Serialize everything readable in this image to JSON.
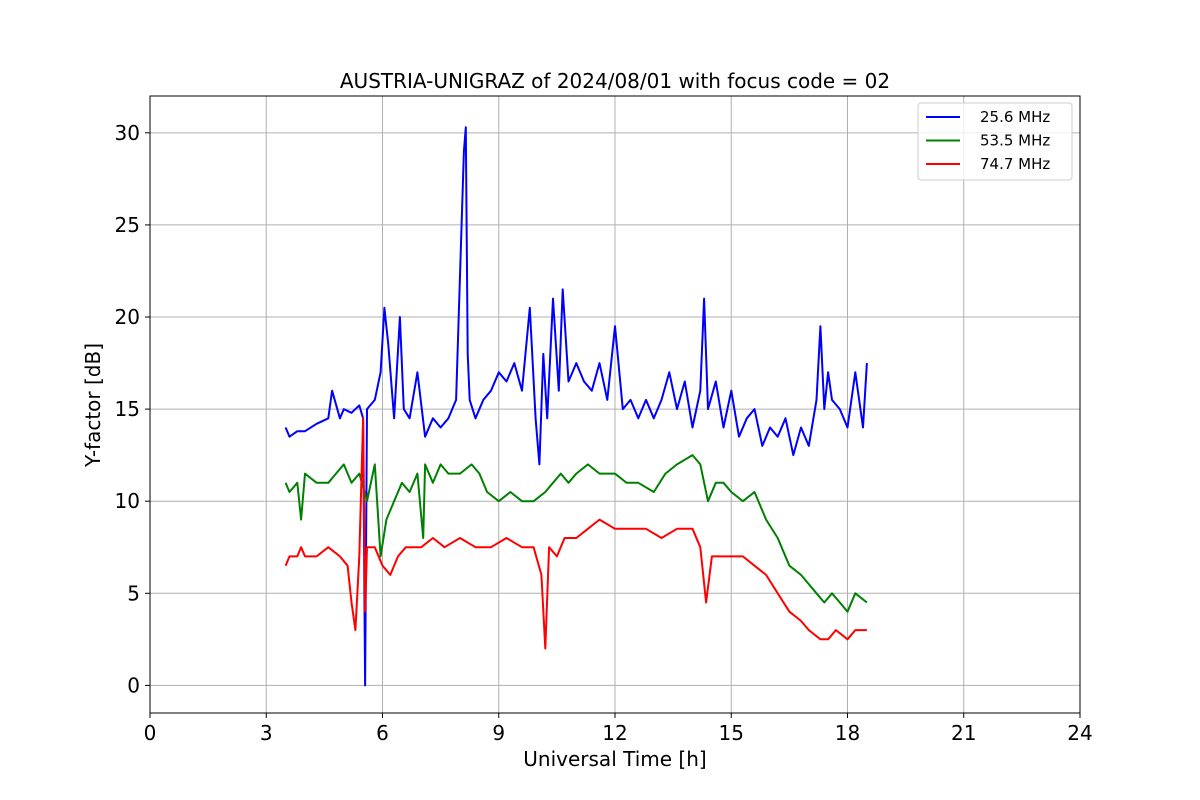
{
  "chart_data": {
    "type": "line",
    "title": "AUSTRIA-UNIGRAZ of 2024/08/01 with focus code = 02",
    "xlabel": "Universal Time [h]",
    "ylabel": "Y-factor [dB]",
    "xlim": [
      0,
      24
    ],
    "ylim": [
      -1.5,
      32
    ],
    "xticks": [
      0,
      3,
      6,
      9,
      12,
      15,
      18,
      21,
      24
    ],
    "yticks": [
      0,
      5,
      10,
      15,
      20,
      25,
      30
    ],
    "grid": true,
    "legend": "top-right",
    "series": [
      {
        "name": "25.6 MHz",
        "color": "#0000ff",
        "x": [
          3.5,
          3.6,
          3.8,
          4.0,
          4.3,
          4.6,
          4.7,
          4.9,
          5.0,
          5.2,
          5.4,
          5.5,
          5.55,
          5.6,
          5.8,
          5.95,
          6.05,
          6.15,
          6.3,
          6.45,
          6.55,
          6.7,
          6.9,
          7.1,
          7.3,
          7.5,
          7.7,
          7.9,
          8.1,
          8.15,
          8.2,
          8.25,
          8.4,
          8.6,
          8.8,
          9.0,
          9.2,
          9.4,
          9.6,
          9.8,
          9.95,
          10.05,
          10.15,
          10.25,
          10.4,
          10.55,
          10.65,
          10.8,
          11.0,
          11.2,
          11.4,
          11.6,
          11.8,
          12.0,
          12.2,
          12.4,
          12.6,
          12.8,
          13.0,
          13.2,
          13.4,
          13.6,
          13.8,
          14.0,
          14.2,
          14.3,
          14.4,
          14.6,
          14.8,
          15.0,
          15.2,
          15.4,
          15.6,
          15.8,
          16.0,
          16.2,
          16.4,
          16.6,
          16.8,
          17.0,
          17.2,
          17.3,
          17.4,
          17.5,
          17.6,
          17.8,
          18.0,
          18.2,
          18.4,
          18.5
        ],
        "values": [
          14.0,
          13.5,
          13.8,
          13.8,
          14.2,
          14.5,
          16.0,
          14.5,
          15.0,
          14.8,
          15.2,
          14.5,
          0.0,
          15.0,
          15.5,
          17.0,
          20.5,
          18.5,
          14.5,
          20.0,
          15.0,
          14.5,
          17.0,
          13.5,
          14.5,
          14.0,
          14.5,
          15.5,
          29.0,
          30.3,
          18.0,
          15.5,
          14.5,
          15.5,
          16.0,
          17.0,
          16.5,
          17.5,
          16.0,
          20.5,
          14.5,
          12.0,
          18.0,
          14.5,
          21.0,
          16.0,
          21.5,
          16.5,
          17.5,
          16.5,
          16.0,
          17.5,
          15.5,
          19.5,
          15.0,
          15.5,
          14.5,
          15.5,
          14.5,
          15.5,
          17.0,
          15.0,
          16.5,
          14.0,
          16.0,
          21.0,
          15.0,
          16.5,
          14.0,
          16.0,
          13.5,
          14.5,
          15.0,
          13.0,
          14.0,
          13.5,
          14.5,
          12.5,
          14.0,
          13.0,
          15.5,
          19.5,
          15.0,
          17.0,
          15.5,
          15.0,
          14.0,
          17.0,
          14.0,
          17.5
        ]
      },
      {
        "name": "53.5 MHz",
        "color": "#008000",
        "x": [
          3.5,
          3.6,
          3.8,
          3.9,
          4.0,
          4.3,
          4.6,
          4.8,
          5.0,
          5.2,
          5.4,
          5.6,
          5.8,
          5.95,
          6.1,
          6.3,
          6.5,
          6.7,
          6.9,
          7.05,
          7.1,
          7.3,
          7.5,
          7.7,
          8.0,
          8.3,
          8.5,
          8.7,
          9.0,
          9.3,
          9.6,
          9.9,
          10.2,
          10.4,
          10.6,
          10.8,
          11.0,
          11.3,
          11.6,
          12.0,
          12.3,
          12.6,
          13.0,
          13.3,
          13.6,
          14.0,
          14.2,
          14.4,
          14.6,
          14.8,
          15.0,
          15.3,
          15.6,
          15.9,
          16.2,
          16.5,
          16.8,
          17.0,
          17.2,
          17.4,
          17.6,
          17.8,
          18.0,
          18.2,
          18.5
        ],
        "values": [
          11.0,
          10.5,
          11.0,
          9.0,
          11.5,
          11.0,
          11.0,
          11.5,
          12.0,
          11.0,
          11.5,
          10.0,
          12.0,
          7.0,
          9.0,
          10.0,
          11.0,
          10.5,
          11.5,
          8.0,
          12.0,
          11.0,
          12.0,
          11.5,
          11.5,
          12.0,
          11.5,
          10.5,
          10.0,
          10.5,
          10.0,
          10.0,
          10.5,
          11.0,
          11.5,
          11.0,
          11.5,
          12.0,
          11.5,
          11.5,
          11.0,
          11.0,
          10.5,
          11.5,
          12.0,
          12.5,
          12.0,
          10.0,
          11.0,
          11.0,
          10.5,
          10.0,
          10.5,
          9.0,
          8.0,
          6.5,
          6.0,
          5.5,
          5.0,
          4.5,
          5.0,
          4.5,
          4.0,
          5.0,
          4.5
        ]
      },
      {
        "name": "74.7 MHz",
        "color": "#ff0000",
        "x": [
          3.5,
          3.6,
          3.8,
          3.9,
          4.0,
          4.3,
          4.6,
          4.9,
          5.1,
          5.2,
          5.3,
          5.4,
          5.5,
          5.55,
          5.6,
          5.8,
          6.0,
          6.2,
          6.4,
          6.6,
          6.8,
          7.0,
          7.3,
          7.6,
          8.0,
          8.4,
          8.8,
          9.2,
          9.6,
          9.9,
          10.1,
          10.2,
          10.3,
          10.5,
          10.7,
          11.0,
          11.3,
          11.6,
          12.0,
          12.4,
          12.8,
          13.2,
          13.6,
          14.0,
          14.2,
          14.35,
          14.5,
          14.7,
          15.0,
          15.3,
          15.6,
          15.9,
          16.2,
          16.5,
          16.8,
          17.0,
          17.3,
          17.5,
          17.7,
          18.0,
          18.2,
          18.5
        ],
        "values": [
          6.5,
          7.0,
          7.0,
          7.5,
          7.0,
          7.0,
          7.5,
          7.0,
          6.5,
          4.5,
          3.0,
          7.0,
          14.5,
          4.0,
          7.5,
          7.5,
          6.5,
          6.0,
          7.0,
          7.5,
          7.5,
          7.5,
          8.0,
          7.5,
          8.0,
          7.5,
          7.5,
          8.0,
          7.5,
          7.5,
          6.0,
          2.0,
          7.5,
          7.0,
          8.0,
          8.0,
          8.5,
          9.0,
          8.5,
          8.5,
          8.5,
          8.0,
          8.5,
          8.5,
          7.5,
          4.5,
          7.0,
          7.0,
          7.0,
          7.0,
          6.5,
          6.0,
          5.0,
          4.0,
          3.5,
          3.0,
          2.5,
          2.5,
          3.0,
          2.5,
          3.0,
          3.0
        ]
      }
    ]
  }
}
